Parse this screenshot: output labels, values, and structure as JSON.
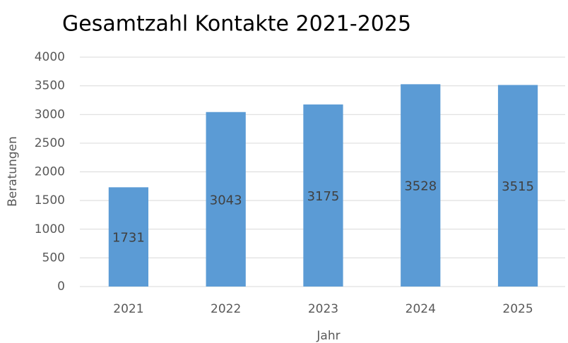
{
  "chart_data": {
    "type": "bar",
    "title": "Gesamtzahl Kontakte 2021-2025",
    "x_label": "Jahr",
    "y_label": "Beratungen",
    "categories": [
      "2021",
      "2022",
      "2023",
      "2024",
      "2025"
    ],
    "values": [
      1731,
      3043,
      3175,
      3528,
      3515
    ],
    "color": "#5b9bd5",
    "ylim": [
      0,
      4000
    ],
    "yticks": [
      0,
      500,
      1000,
      1500,
      2000,
      2500,
      3000,
      3500,
      4000
    ],
    "grid": true,
    "data_labels": true
  }
}
